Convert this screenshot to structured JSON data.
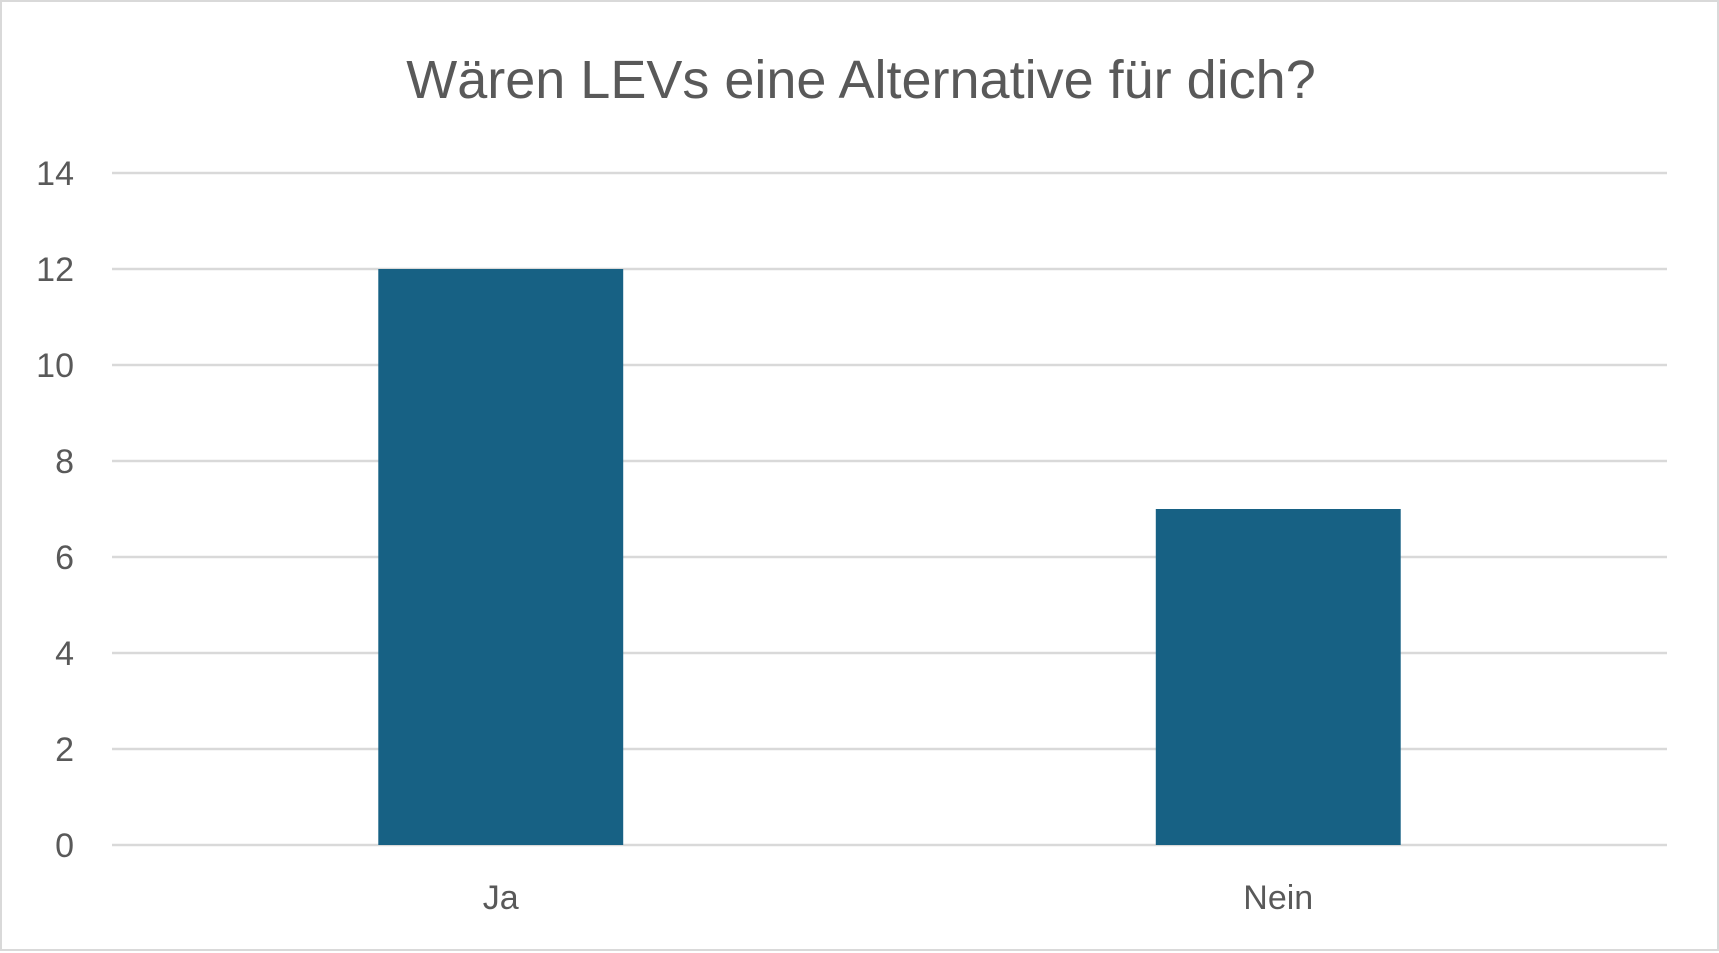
{
  "chart_data": {
    "type": "bar",
    "title": "Wären LEVs eine Alternative für dich?",
    "xlabel": "",
    "ylabel": "",
    "categories": [
      "Ja",
      "Nein"
    ],
    "values": [
      12,
      7
    ],
    "ylim": [
      0,
      14
    ],
    "yticks": [
      0,
      2,
      4,
      6,
      8,
      10,
      12,
      14
    ],
    "grid": true,
    "legend": "none",
    "colors": {
      "bar": "#176184",
      "grid": "#d9d9d9",
      "text": "#595959"
    }
  }
}
